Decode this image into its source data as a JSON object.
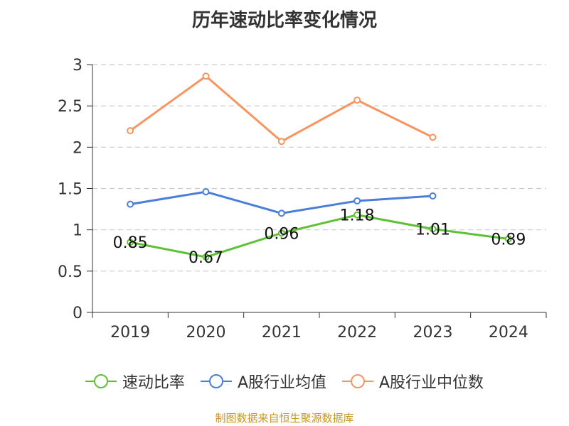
{
  "chart_data": {
    "type": "line",
    "title": "历年速动比率变化情况",
    "categories": [
      "2019",
      "2020",
      "2021",
      "2022",
      "2023",
      "2024"
    ],
    "ylim": [
      0,
      3
    ],
    "yticks": [
      "0",
      "0.5",
      "1",
      "1.5",
      "2",
      "2.5",
      "3"
    ],
    "ytick_values": [
      0,
      0.5,
      1,
      1.5,
      2,
      2.5,
      3
    ],
    "grid": true,
    "legend_position": "bottom",
    "series": [
      {
        "name": "速动比率",
        "color": "#5dc233",
        "values": [
          0.85,
          0.67,
          0.96,
          1.18,
          1.01,
          0.89
        ],
        "labels": [
          "0.85",
          "0.67",
          "0.96",
          "1.18",
          "1.01",
          "0.89"
        ]
      },
      {
        "name": "A股行业均值",
        "color": "#4a7fd9",
        "values": [
          1.31,
          1.46,
          1.2,
          1.35,
          1.41,
          null
        ]
      },
      {
        "name": "A股行业中位数",
        "color": "#f79560",
        "values": [
          2.2,
          2.86,
          2.07,
          2.57,
          2.12,
          null
        ]
      }
    ]
  },
  "footer": {
    "source": "制图数据来自恒生聚源数据库",
    "color": "#c8961e"
  }
}
